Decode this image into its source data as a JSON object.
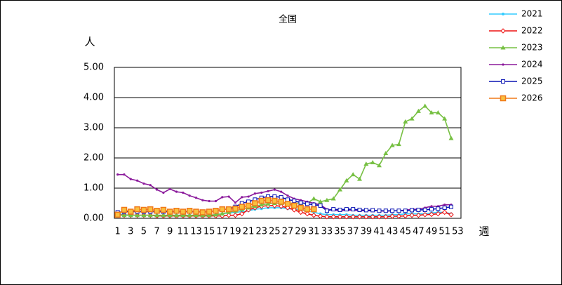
{
  "chart_data": {
    "type": "line",
    "title": "全国",
    "y_label": "人",
    "x_label": "週",
    "categories": [
      "1",
      null,
      "3",
      null,
      "5",
      null,
      "7",
      null,
      "9",
      null,
      "11",
      null,
      "13",
      null,
      "15",
      null,
      "17",
      null,
      "19",
      null,
      "21",
      null,
      "23",
      null,
      "25",
      null,
      "27",
      null,
      "29",
      null,
      "31",
      null,
      "33",
      null,
      "35",
      null,
      "37",
      null,
      "39",
      null,
      "41",
      null,
      "43",
      null,
      "45",
      null,
      "47",
      null,
      "49",
      null,
      "51",
      null,
      "53"
    ],
    "ylim": [
      0,
      5
    ],
    "yticks": [
      {
        "value": 0,
        "label": "0.00"
      },
      {
        "value": 1,
        "label": "1.00"
      },
      {
        "value": 2,
        "label": "2.00"
      },
      {
        "value": 3,
        "label": "3.00"
      },
      {
        "value": 4,
        "label": "4.00"
      },
      {
        "value": 5,
        "label": "5.00"
      }
    ],
    "grid": true,
    "legend": "right",
    "series": [
      {
        "name": "2021",
        "color": "#33ccff",
        "marker": "circle",
        "values": [
          0.15,
          0.12,
          0.1,
          0.1,
          0.1,
          0.1,
          0.1,
          0.1,
          0.1,
          0.1,
          0.1,
          0.1,
          0.1,
          0.1,
          0.1,
          0.12,
          0.15,
          0.18,
          0.2,
          0.22,
          0.25,
          0.3,
          0.32,
          0.35,
          0.35,
          0.35,
          0.32,
          0.3,
          0.28,
          0.25,
          0.2,
          0.15,
          0.12,
          0.12,
          0.12,
          0.12,
          0.1,
          0.1,
          0.1,
          0.1,
          0.1,
          0.1,
          0.12,
          0.12,
          0.15,
          0.15,
          0.15,
          0.15,
          0.18,
          0.2,
          0.2,
          0.15,
          null
        ]
      },
      {
        "name": "2022",
        "color": "#ee1111",
        "marker": "diamond",
        "values": [
          0.12,
          0.1,
          0.1,
          0.1,
          0.1,
          0.1,
          0.08,
          0.08,
          0.08,
          0.08,
          0.08,
          0.08,
          0.08,
          0.08,
          0.08,
          0.08,
          0.08,
          0.1,
          0.1,
          0.15,
          0.28,
          0.35,
          0.4,
          0.42,
          0.42,
          0.4,
          0.35,
          0.28,
          0.2,
          0.15,
          0.1,
          0.07,
          0.05,
          0.05,
          0.05,
          0.05,
          0.05,
          0.05,
          0.05,
          0.05,
          0.05,
          0.05,
          0.07,
          0.07,
          0.08,
          0.1,
          0.1,
          0.12,
          0.13,
          0.15,
          0.2,
          0.12,
          null
        ]
      },
      {
        "name": "2023",
        "color": "#77c043",
        "marker": "triangle",
        "values": [
          0.1,
          0.1,
          0.1,
          0.1,
          0.1,
          0.1,
          0.1,
          0.1,
          0.1,
          0.1,
          0.1,
          0.1,
          0.1,
          0.1,
          0.1,
          0.12,
          0.15,
          0.2,
          0.25,
          0.3,
          0.35,
          0.4,
          0.45,
          0.48,
          0.5,
          0.5,
          0.5,
          0.5,
          0.5,
          0.5,
          0.65,
          0.55,
          0.6,
          0.65,
          0.95,
          1.25,
          1.45,
          1.3,
          1.8,
          1.85,
          1.75,
          2.15,
          2.42,
          2.45,
          3.2,
          3.3,
          3.55,
          3.72,
          3.5,
          3.5,
          3.3,
          2.65,
          null
        ]
      },
      {
        "name": "2024",
        "color": "#8b1a9c",
        "marker": "dot",
        "values": [
          1.45,
          1.45,
          1.3,
          1.25,
          1.15,
          1.1,
          0.95,
          0.85,
          0.97,
          0.88,
          0.85,
          0.75,
          0.68,
          0.6,
          0.57,
          0.57,
          0.7,
          0.72,
          0.52,
          0.7,
          0.72,
          0.82,
          0.85,
          0.9,
          0.95,
          0.88,
          0.75,
          0.65,
          0.6,
          0.55,
          0.5,
          0.45,
          0.3,
          0.27,
          0.25,
          0.27,
          0.27,
          0.25,
          0.25,
          0.25,
          0.25,
          0.23,
          0.25,
          0.25,
          0.27,
          0.3,
          0.3,
          0.35,
          0.4,
          0.4,
          0.45,
          0.45,
          null
        ]
      },
      {
        "name": "2025",
        "color": "#0a14b4",
        "marker": "square-open",
        "values": [
          0.2,
          0.22,
          0.22,
          0.22,
          0.22,
          0.22,
          0.22,
          0.22,
          0.22,
          0.22,
          0.22,
          0.22,
          0.22,
          0.22,
          0.22,
          0.25,
          0.28,
          0.32,
          0.38,
          0.5,
          0.55,
          0.62,
          0.68,
          0.72,
          0.72,
          0.7,
          0.62,
          0.58,
          0.52,
          0.48,
          0.45,
          0.42,
          0.25,
          0.3,
          0.28,
          0.3,
          0.3,
          0.28,
          0.27,
          0.27,
          0.25,
          0.25,
          0.25,
          0.25,
          0.25,
          0.27,
          0.28,
          0.28,
          0.3,
          0.32,
          0.35,
          0.38,
          null
        ]
      },
      {
        "name": "2026",
        "color": "#f07818",
        "marker": "square",
        "values": [
          0.12,
          0.28,
          0.22,
          0.3,
          0.28,
          0.3,
          0.25,
          0.28,
          0.22,
          0.25,
          0.22,
          0.25,
          0.22,
          0.2,
          0.22,
          0.25,
          0.3,
          0.3,
          0.32,
          0.38,
          0.42,
          0.5,
          0.58,
          0.6,
          0.58,
          0.55,
          0.48,
          0.42,
          0.35,
          0.3,
          0.3,
          null,
          null,
          null,
          null,
          null,
          null,
          null,
          null,
          null,
          null,
          null,
          null,
          null,
          null,
          null,
          null,
          null,
          null,
          null,
          null,
          null,
          null
        ]
      }
    ]
  }
}
